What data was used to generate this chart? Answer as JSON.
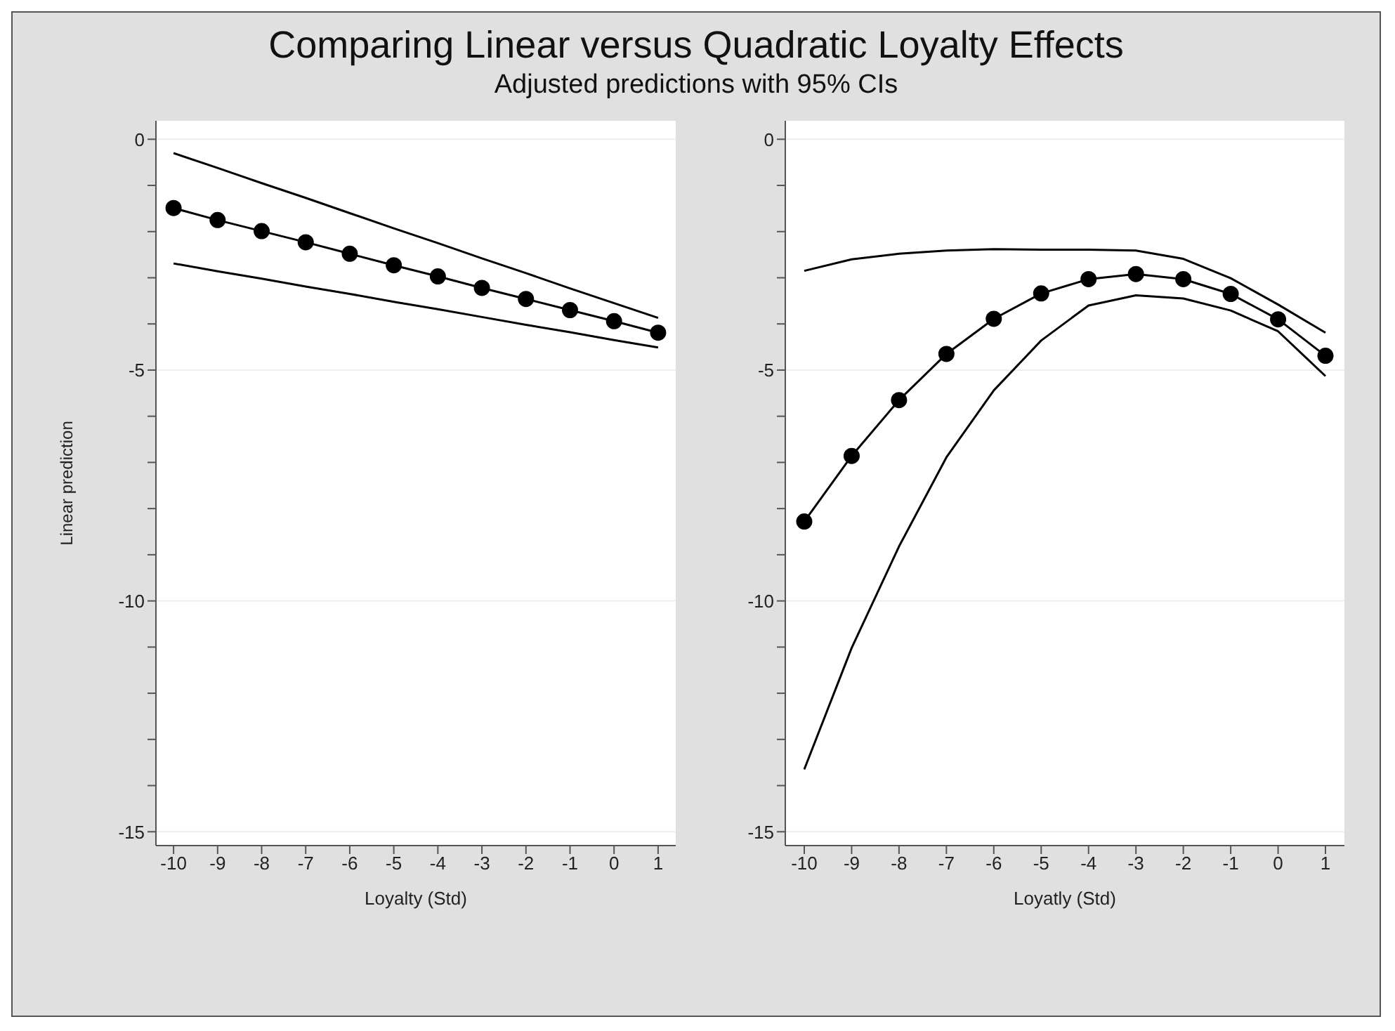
{
  "chart_data": [
    {
      "type": "line",
      "title": "Comparing Linear versus Quadratic Loyalty Effects",
      "subtitle": "Adjusted predictions with 95% CIs",
      "xlabel": "Loyalty (Std)",
      "ylabel": "Linear prediction",
      "x": [
        -10,
        -9,
        -8,
        -7,
        -6,
        -5,
        -4,
        -3,
        -2,
        -1,
        0,
        1
      ],
      "series": [
        {
          "color": "#000000",
          "marker": "none",
          "values": [
            -0.3,
            -0.62,
            -0.95,
            -1.27,
            -1.6,
            -1.93,
            -2.25,
            -2.58,
            -2.9,
            -3.23,
            -3.55,
            -3.87
          ]
        },
        {
          "color": "#000000",
          "marker": "circle",
          "values": [
            -1.49,
            -1.75,
            -1.99,
            -2.23,
            -2.48,
            -2.73,
            -2.97,
            -3.22,
            -3.46,
            -3.7,
            -3.94,
            -4.19
          ]
        },
        {
          "color": "#000000",
          "marker": "none",
          "values": [
            -2.69,
            -2.86,
            -3.02,
            -3.19,
            -3.35,
            -3.52,
            -3.68,
            -3.85,
            -4.02,
            -4.18,
            -4.35,
            -4.51
          ]
        }
      ],
      "xlim": [
        -10.4,
        1.4
      ],
      "xticks": [
        -10,
        -9,
        -8,
        -7,
        -6,
        -5,
        -4,
        -3,
        -2,
        -1,
        0,
        1
      ],
      "ylim": [
        -15.3,
        0.4
      ],
      "yticks": [
        0,
        {
          "value": -1,
          "label": null
        },
        {
          "value": -2,
          "label": null
        },
        {
          "value": -3,
          "label": null
        },
        {
          "value": -4,
          "label": null
        },
        -5,
        {
          "value": -6,
          "label": null
        },
        {
          "value": -7,
          "label": null
        },
        {
          "value": -8,
          "label": null
        },
        {
          "value": -9,
          "label": null
        },
        -10,
        {
          "value": -11,
          "label": null
        },
        {
          "value": -12,
          "label": null
        },
        {
          "value": -13,
          "label": null
        },
        {
          "value": -14,
          "label": null
        },
        -15
      ],
      "grid": "y",
      "line_style": "solid",
      "legend": false
    },
    {
      "type": "line",
      "xlabel": "Loyatly (Std)",
      "x": [
        -10,
        -9,
        -8,
        -7,
        -6,
        -5,
        -4,
        -3,
        -2,
        -1,
        0,
        1
      ],
      "series": [
        {
          "color": "#000000",
          "marker": "none",
          "values": [
            -2.85,
            -2.6,
            -2.48,
            -2.41,
            -2.38,
            -2.39,
            -2.39,
            -2.41,
            -2.59,
            -3.01,
            -3.58,
            -4.19
          ]
        },
        {
          "color": "#000000",
          "marker": "circle",
          "values": [
            -8.28,
            -6.86,
            -5.65,
            -4.65,
            -3.89,
            -3.34,
            -3.03,
            -2.92,
            -3.03,
            -3.35,
            -3.9,
            -4.69
          ]
        },
        {
          "color": "#000000",
          "marker": "none",
          "values": [
            -13.65,
            -11.02,
            -8.82,
            -6.89,
            -5.44,
            -4.36,
            -3.6,
            -3.38,
            -3.45,
            -3.71,
            -4.16,
            -5.13
          ]
        }
      ],
      "xlim": [
        -10.4,
        1.4
      ],
      "xticks": [
        -10,
        -9,
        -8,
        -7,
        -6,
        -5,
        -4,
        -3,
        -2,
        -1,
        0,
        1
      ],
      "ylim": [
        -15.3,
        0.4
      ],
      "yticks": [
        0,
        {
          "value": -1,
          "label": null
        },
        {
          "value": -2,
          "label": null
        },
        {
          "value": -3,
          "label": null
        },
        {
          "value": -4,
          "label": null
        },
        -5,
        {
          "value": -6,
          "label": null
        },
        {
          "value": -7,
          "label": null
        },
        {
          "value": -8,
          "label": null
        },
        {
          "value": -9,
          "label": null
        },
        -10,
        {
          "value": -11,
          "label": null
        },
        {
          "value": -12,
          "label": null
        },
        {
          "value": -13,
          "label": null
        },
        {
          "value": -14,
          "label": null
        },
        -15
      ],
      "grid": "y",
      "line_style": "solid",
      "legend": false
    }
  ]
}
